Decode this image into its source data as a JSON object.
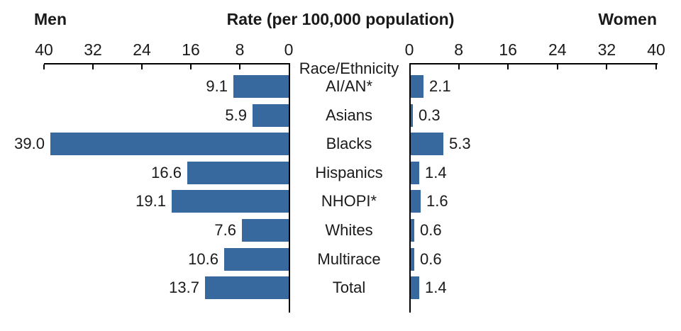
{
  "chart_data": {
    "type": "bar",
    "subtype": "back-to-back-horizontal",
    "title": "Rate (per 100,000 population)",
    "category_axis_label": "Race/Ethnicity",
    "categories": [
      "AI/AN*",
      "Asians",
      "Blacks",
      "Hispanics",
      "NHOPI*",
      "Whites",
      "Multirace",
      "Total"
    ],
    "series": [
      {
        "name": "Men",
        "side": "left",
        "values": [
          9.1,
          5.9,
          39.0,
          16.6,
          19.1,
          7.6,
          10.6,
          13.7
        ]
      },
      {
        "name": "Women",
        "side": "right",
        "values": [
          2.1,
          0.3,
          5.3,
          1.4,
          1.6,
          0.6,
          0.6,
          1.4
        ]
      }
    ],
    "axis_ticks": [
      0,
      8,
      16,
      24,
      32,
      40
    ],
    "axis_range": [
      0,
      40
    ],
    "value_label_decimals": 1,
    "bar_color": "#38699E",
    "axis_color": "#000000",
    "text_color": "#1a1a1a",
    "grid": "off",
    "legend_position": "top-as-side-titles"
  }
}
